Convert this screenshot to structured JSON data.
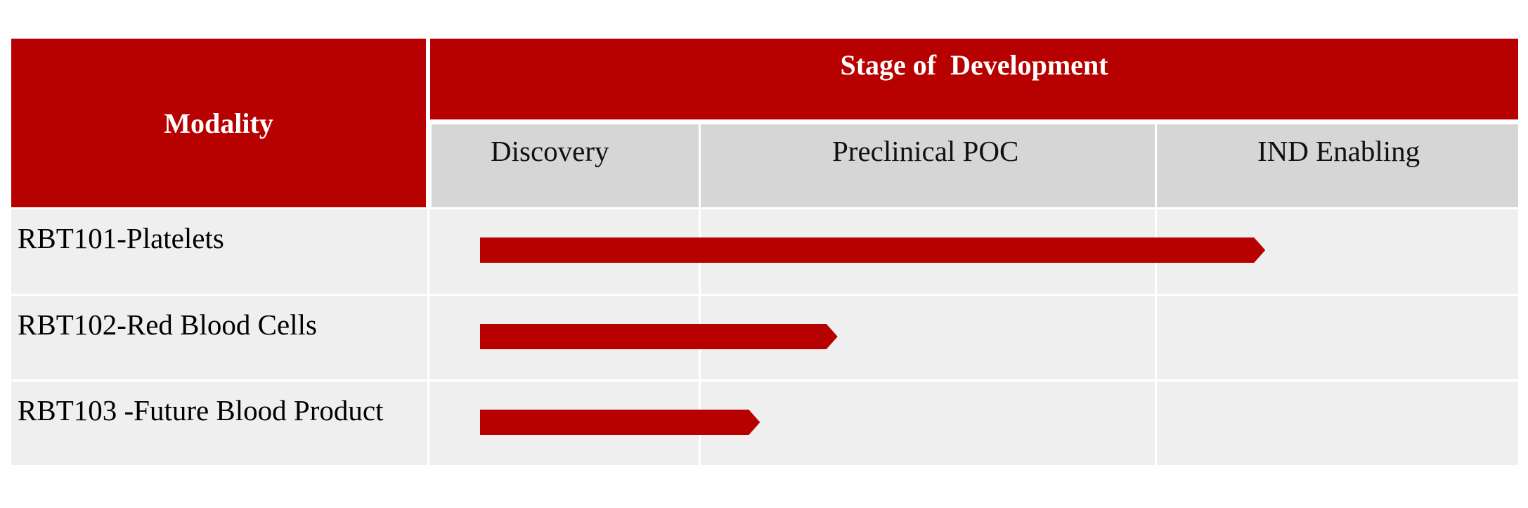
{
  "chart_data": {
    "type": "bar",
    "orientation": "horizontal",
    "header": {
      "modality_label": "Modality",
      "stage_label": "Stage of  Development"
    },
    "stages": [
      "Discovery",
      "Preclinical POC",
      "IND Enabling"
    ],
    "programs": [
      {
        "name": "RBT101-Platelets",
        "progress": 2.3
      },
      {
        "name": "RBT102-Red Blood Cells",
        "progress": 1.3
      },
      {
        "name": "RBT103 -Future Blood Product",
        "progress": 1.13
      }
    ],
    "progress_range": [
      0,
      3
    ],
    "progress_units": "stages completed (0 = start of Discovery, 3 = end of IND Enabling)",
    "colors": {
      "accent": "#b70000",
      "header_gray": "#d6d6d6",
      "row_fill": "#efefef",
      "gridline": "#ffffff"
    }
  }
}
